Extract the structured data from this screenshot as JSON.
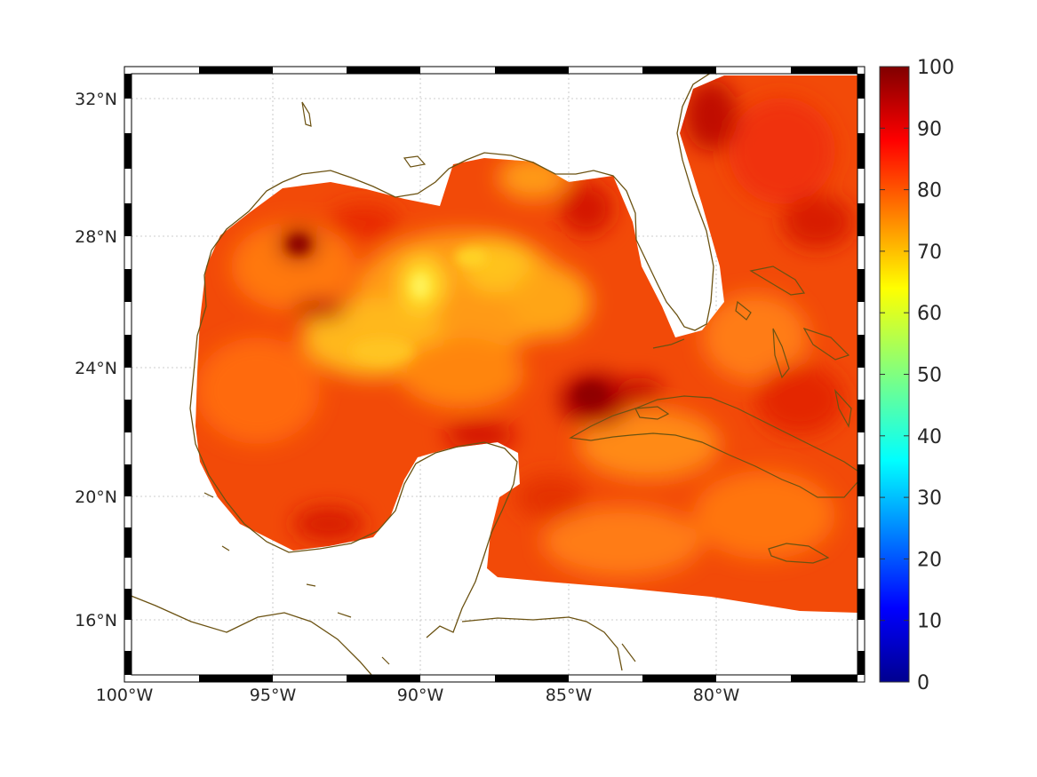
{
  "map": {
    "lon_labels": [
      "100°W",
      "95°W",
      "90°W",
      "85°W",
      "80°W"
    ],
    "lat_labels": [
      "32°N",
      "28°N",
      "24°N",
      "20°N",
      "16°N"
    ],
    "extent": {
      "lon_min": -100,
      "lon_max": -75,
      "lat_min": 14.3,
      "lat_max": 33
    },
    "field_colors": {
      "dark_red": "#b30000",
      "red": "#e62a00",
      "orange_red": "#f85a0a",
      "orange": "#ff8a12",
      "yellow": "#ffc81a"
    },
    "coastline_color": "#6b5212"
  },
  "colorbar": {
    "ticks": [
      "100",
      "90",
      "80",
      "70",
      "60",
      "50",
      "40",
      "30",
      "20",
      "10",
      "0"
    ],
    "min": 0,
    "max": 100,
    "colormap": "jet"
  }
}
